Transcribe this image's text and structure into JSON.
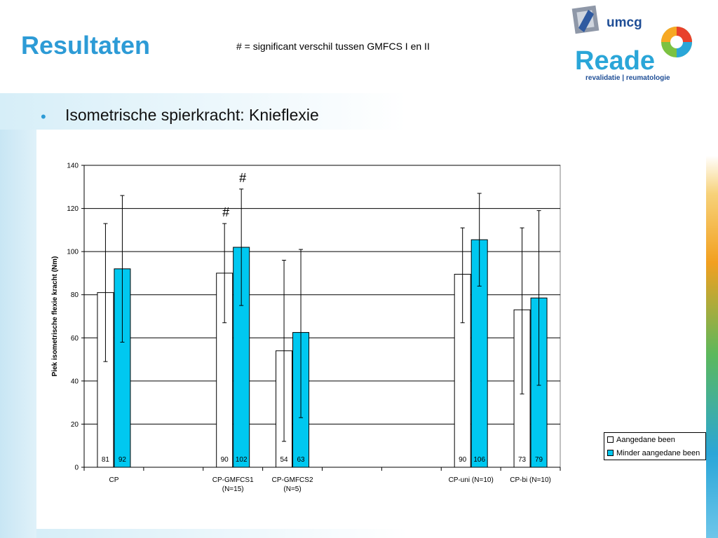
{
  "slide": {
    "title": "Resultaten",
    "note": "# = significant verschil tussen GMFCS I en II",
    "bullet": "Isometrische spierkracht: Knieflexie",
    "bullet_symbol": "•"
  },
  "logo": {
    "umcg": "umcg",
    "reade": "Reade",
    "tagline": "revalidatie | reumatologie"
  },
  "colors": {
    "accent": "#2d9bd6",
    "series_minder": "#00c8f0",
    "series_aangedane": "#ffffff"
  },
  "chart_data": {
    "type": "bar",
    "ylabel": "Piek isometrische flexie kracht (Nm)",
    "ylim": [
      0,
      140
    ],
    "yticks": [
      0,
      20,
      40,
      60,
      80,
      100,
      120,
      140
    ],
    "grid": true,
    "legend_position": "right",
    "categories": [
      "CP",
      "",
      "CP-GMFCS1 (N=15)",
      "CP-GMFCS2 (N=5)",
      "",
      "",
      "CP-uni (N=10)",
      "CP-bi (N=10)"
    ],
    "category_labels": [
      [
        "CP"
      ],
      [],
      [
        "CP-GMFCS1",
        "(N=15)"
      ],
      [
        "CP-GMFCS2",
        "(N=5)"
      ],
      [],
      [],
      [
        "CP-uni (N=10)"
      ],
      [
        "CP-bi (N=10)"
      ]
    ],
    "series": [
      {
        "name": "Aangedane been",
        "values": [
          81,
          null,
          90,
          54,
          null,
          null,
          89.5,
          73
        ],
        "labels": [
          "81",
          "",
          "90",
          "54",
          "",
          "",
          "90",
          "73"
        ],
        "error_low": [
          49,
          null,
          67,
          12,
          null,
          null,
          67,
          34
        ],
        "error_high": [
          113,
          null,
          113,
          96,
          null,
          null,
          111,
          111
        ]
      },
      {
        "name": "Minder aangedane been",
        "values": [
          92,
          null,
          102,
          62.5,
          null,
          null,
          105.5,
          78.5
        ],
        "labels": [
          "92",
          "",
          "102",
          "63",
          "",
          "",
          "106",
          "79"
        ],
        "error_low": [
          58,
          null,
          75,
          23,
          null,
          null,
          84,
          38
        ],
        "error_high": [
          126,
          null,
          129,
          101,
          null,
          null,
          127,
          119
        ]
      }
    ],
    "annotations": [
      {
        "text": "#",
        "category": 2,
        "series": 0
      },
      {
        "text": "#",
        "category": 2,
        "series": 1
      }
    ]
  }
}
